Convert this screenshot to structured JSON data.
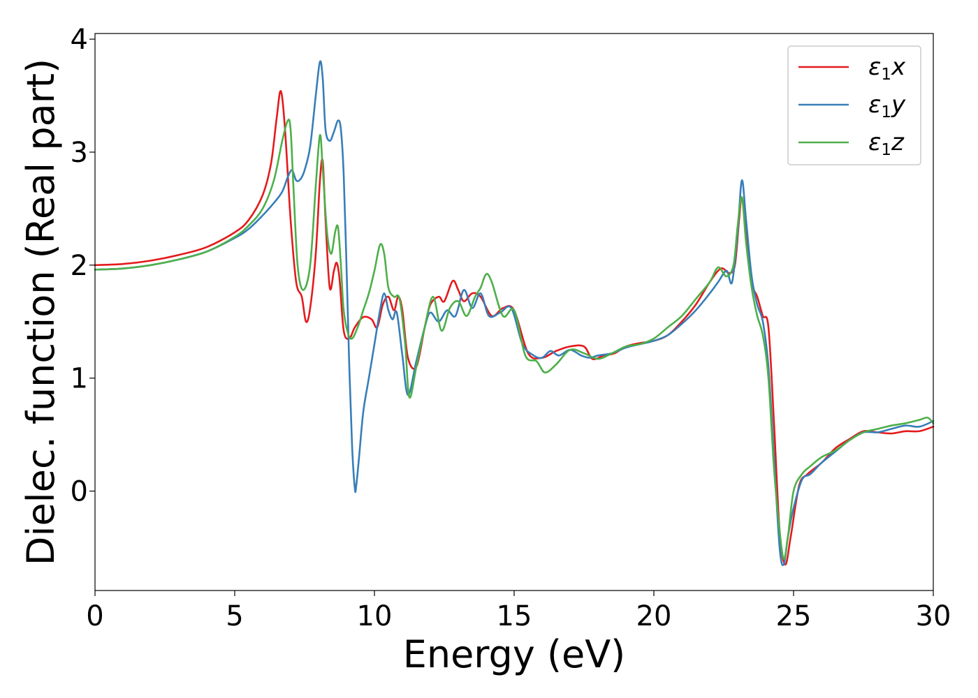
{
  "chart_data": {
    "type": "line",
    "xlabel": "Energy (eV)",
    "ylabel": "Dielec. function (Real part)",
    "xlim": [
      0,
      30
    ],
    "ylim": [
      -0.88,
      4.05
    ],
    "xticks": [
      0,
      5,
      10,
      15,
      20,
      25,
      30
    ],
    "yticks": [
      0,
      1,
      2,
      3,
      4
    ],
    "grid": false,
    "legend_position": "top-right",
    "series": [
      {
        "name": "ε₁x",
        "legend_base": "ε",
        "legend_sub": "1",
        "legend_var": "x",
        "color": "#e41a1c",
        "x": [
          0,
          1,
          2,
          3,
          4,
          5,
          5.5,
          6,
          6.3,
          6.5,
          6.65,
          6.8,
          7.0,
          7.2,
          7.4,
          7.55,
          7.7,
          7.9,
          8.05,
          8.15,
          8.25,
          8.4,
          8.55,
          8.65,
          8.75,
          8.9,
          9.1,
          9.3,
          9.6,
          9.9,
          10.1,
          10.3,
          10.5,
          10.7,
          10.85,
          11.0,
          11.2,
          11.5,
          11.8,
          12.0,
          12.3,
          12.5,
          12.8,
          13.0,
          13.2,
          13.5,
          13.8,
          14.2,
          14.6,
          15.0,
          15.5,
          16.0,
          16.5,
          17.0,
          17.5,
          17.8,
          18.2,
          18.6,
          19.0,
          19.5,
          20.0,
          20.5,
          21.0,
          21.5,
          22.0,
          22.4,
          22.7,
          22.9,
          23.05,
          23.15,
          23.3,
          23.5,
          23.7,
          23.9,
          24.1,
          24.3,
          24.5,
          24.7,
          24.9,
          25.2,
          25.5,
          26.0,
          26.5,
          27.0,
          27.5,
          28.0,
          28.5,
          29.0,
          29.5,
          30.0
        ],
        "y": [
          2.0,
          2.01,
          2.04,
          2.09,
          2.16,
          2.29,
          2.4,
          2.62,
          2.9,
          3.3,
          3.54,
          3.2,
          2.4,
          1.85,
          1.72,
          1.5,
          1.62,
          2.1,
          2.75,
          2.92,
          2.4,
          1.8,
          1.95,
          2.02,
          1.88,
          1.42,
          1.35,
          1.45,
          1.54,
          1.52,
          1.45,
          1.65,
          1.72,
          1.6,
          1.72,
          1.6,
          1.18,
          1.1,
          1.45,
          1.65,
          1.72,
          1.68,
          1.86,
          1.78,
          1.68,
          1.75,
          1.72,
          1.55,
          1.62,
          1.6,
          1.22,
          1.18,
          1.24,
          1.28,
          1.28,
          1.17,
          1.2,
          1.22,
          1.28,
          1.31,
          1.33,
          1.38,
          1.5,
          1.65,
          1.85,
          1.97,
          1.93,
          2.0,
          2.4,
          2.6,
          2.3,
          1.85,
          1.72,
          1.55,
          1.45,
          0.6,
          -0.35,
          -0.65,
          -0.4,
          0.05,
          0.15,
          0.25,
          0.38,
          0.46,
          0.53,
          0.52,
          0.51,
          0.53,
          0.53,
          0.57
        ]
      },
      {
        "name": "ε₁y",
        "legend_base": "ε",
        "legend_sub": "1",
        "legend_var": "y",
        "color": "#377eb8",
        "x": [
          0,
          1,
          2,
          3,
          4,
          5,
          5.5,
          6,
          6.4,
          6.7,
          6.9,
          7.05,
          7.2,
          7.35,
          7.5,
          7.7,
          7.9,
          8.05,
          8.15,
          8.25,
          8.4,
          8.55,
          8.7,
          8.8,
          8.9,
          9.0,
          9.1,
          9.2,
          9.3,
          9.35,
          9.45,
          9.6,
          9.8,
          10.0,
          10.2,
          10.35,
          10.5,
          10.65,
          10.8,
          11.0,
          11.2,
          11.5,
          11.8,
          12.0,
          12.3,
          12.6,
          12.9,
          13.2,
          13.5,
          13.8,
          14.1,
          14.5,
          14.9,
          15.3,
          15.7,
          16.0,
          16.3,
          16.6,
          17.0,
          17.4,
          17.7,
          18.0,
          18.5,
          19.0,
          19.5,
          20.0,
          20.5,
          21.0,
          21.5,
          22.0,
          22.3,
          22.6,
          22.8,
          23.0,
          23.15,
          23.3,
          23.5,
          23.7,
          23.9,
          24.1,
          24.3,
          24.5,
          24.65,
          24.8,
          25.0,
          25.3,
          25.6,
          26.0,
          26.5,
          27.0,
          27.5,
          28.0,
          28.5,
          29.0,
          29.5,
          30.0
        ],
        "y": [
          1.96,
          1.97,
          2.0,
          2.05,
          2.12,
          2.24,
          2.32,
          2.44,
          2.55,
          2.65,
          2.78,
          2.84,
          2.75,
          2.76,
          2.84,
          3.05,
          3.5,
          3.8,
          3.65,
          3.2,
          3.1,
          3.18,
          3.28,
          3.2,
          2.8,
          2.0,
          1.1,
          0.4,
          0.02,
          0.05,
          0.3,
          0.7,
          1.0,
          1.3,
          1.6,
          1.75,
          1.6,
          1.52,
          1.58,
          1.2,
          0.85,
          1.15,
          1.45,
          1.58,
          1.5,
          1.6,
          1.55,
          1.78,
          1.62,
          1.75,
          1.55,
          1.58,
          1.62,
          1.3,
          1.2,
          1.18,
          1.24,
          1.2,
          1.25,
          1.2,
          1.18,
          1.2,
          1.22,
          1.27,
          1.3,
          1.33,
          1.38,
          1.48,
          1.6,
          1.75,
          1.85,
          1.95,
          1.85,
          2.3,
          2.75,
          2.4,
          1.9,
          1.65,
          1.5,
          1.1,
          0.3,
          -0.5,
          -0.65,
          -0.4,
          -0.15,
          0.1,
          0.15,
          0.25,
          0.35,
          0.45,
          0.52,
          0.52,
          0.55,
          0.58,
          0.57,
          0.62
        ]
      },
      {
        "name": "ε₁z",
        "legend_base": "ε",
        "legend_sub": "1",
        "legend_var": "z",
        "color": "#4daf4a",
        "x": [
          0,
          1,
          2,
          3,
          4,
          5,
          5.5,
          6,
          6.4,
          6.7,
          6.9,
          7.0,
          7.1,
          7.25,
          7.45,
          7.7,
          7.9,
          8.05,
          8.15,
          8.3,
          8.45,
          8.6,
          8.7,
          8.8,
          8.9,
          9.05,
          9.2,
          9.4,
          9.6,
          9.8,
          10.0,
          10.2,
          10.35,
          10.5,
          10.7,
          10.9,
          11.1,
          11.25,
          11.5,
          11.8,
          12.1,
          12.4,
          12.7,
          13.0,
          13.3,
          13.6,
          13.8,
          14.0,
          14.2,
          14.6,
          15.0,
          15.4,
          15.8,
          16.1,
          16.5,
          17.0,
          17.5,
          18.0,
          18.5,
          19.0,
          19.5,
          20.0,
          20.5,
          21.0,
          21.5,
          22.0,
          22.3,
          22.6,
          22.85,
          23.0,
          23.15,
          23.3,
          23.5,
          23.7,
          23.9,
          24.1,
          24.3,
          24.5,
          24.65,
          24.8,
          25.0,
          25.3,
          25.6,
          26.0,
          26.5,
          27.0,
          27.5,
          28.0,
          28.5,
          29.0,
          29.5,
          29.8,
          30.0
        ],
        "y": [
          1.96,
          1.97,
          2.0,
          2.05,
          2.12,
          2.25,
          2.35,
          2.5,
          2.75,
          3.1,
          3.28,
          3.2,
          2.7,
          2.0,
          1.78,
          2.0,
          2.7,
          3.15,
          2.85,
          2.3,
          2.1,
          2.3,
          2.33,
          2.0,
          1.6,
          1.4,
          1.35,
          1.45,
          1.6,
          1.75,
          1.95,
          2.18,
          2.1,
          1.8,
          1.72,
          1.7,
          1.3,
          0.83,
          1.1,
          1.45,
          1.72,
          1.42,
          1.62,
          1.68,
          1.55,
          1.72,
          1.8,
          1.92,
          1.85,
          1.55,
          1.6,
          1.2,
          1.15,
          1.05,
          1.12,
          1.25,
          1.22,
          1.17,
          1.22,
          1.28,
          1.3,
          1.35,
          1.45,
          1.55,
          1.7,
          1.85,
          1.98,
          1.9,
          2.0,
          2.35,
          2.6,
          2.2,
          1.8,
          1.55,
          1.38,
          1.0,
          0.2,
          -0.35,
          -0.6,
          -0.4,
          0.0,
          0.15,
          0.22,
          0.3,
          0.36,
          0.45,
          0.52,
          0.55,
          0.58,
          0.6,
          0.63,
          0.65,
          0.6
        ]
      }
    ]
  }
}
